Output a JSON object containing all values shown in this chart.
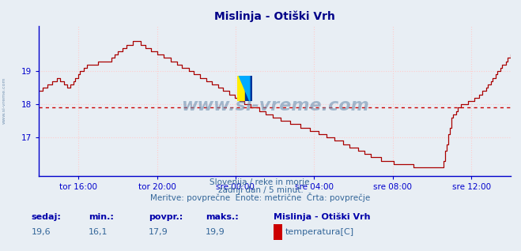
{
  "title": "Mislinja - Otiški Vrh",
  "bg_color": "#e8eef4",
  "plot_bg_color": "#e8eef4",
  "line_color": "#aa0000",
  "axis_color": "#0000cc",
  "grid_color": "#ffcccc",
  "dashed_line_value": 17.9,
  "dashed_line_color": "#cc0000",
  "ylim_min": 15.85,
  "ylim_max": 20.35,
  "yticks": [
    17,
    18,
    19
  ],
  "xtick_positions": [
    2,
    6,
    10,
    14,
    18,
    22
  ],
  "xtick_labels": [
    "tor 16:00",
    "tor 20:00",
    "sre 00:00",
    "sre 04:00",
    "sre 08:00",
    "sre 12:00"
  ],
  "xlim_min": 0,
  "xlim_max": 24,
  "subtitle_line1": "Slovenija / reke in morje.",
  "subtitle_line2": "zadnji dan / 5 minut.",
  "subtitle_line3": "Meritve: povprečne  Enote: metrične  Črta: povprečje",
  "footer_labels": [
    "sedaj:",
    "min.:",
    "povpr.:",
    "maks.:"
  ],
  "footer_values": [
    "19,6",
    "16,1",
    "17,9",
    "19,9"
  ],
  "footer_series_name": "Mislinja - Otiški Vrh",
  "footer_series_label": "temperatura[C]",
  "footer_series_color": "#cc0000",
  "watermark": "www.si-vreme.com",
  "watermark_color": "#6688aa",
  "side_label": "www.si-vreme.com",
  "title_color": "#000088",
  "subtitle_color": "#336699",
  "footer_label_color": "#0000aa",
  "footer_value_color": "#336699"
}
